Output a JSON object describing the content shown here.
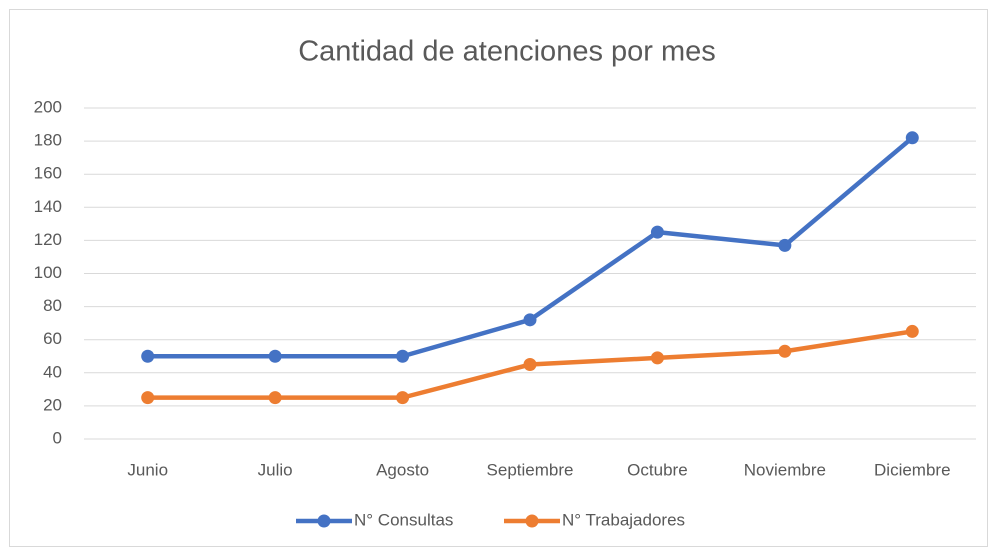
{
  "chart_data": {
    "type": "line",
    "title": "Cantidad de atenciones por mes",
    "categories": [
      "Junio",
      "Julio",
      "Agosto",
      "Septiembre",
      "Octubre",
      "Noviembre",
      "Diciembre"
    ],
    "series": [
      {
        "name": "N° Consultas",
        "color": "#4472c4",
        "values": [
          50,
          50,
          50,
          72,
          125,
          117,
          182
        ]
      },
      {
        "name": "N° Trabajadores",
        "color": "#ed7d31",
        "values": [
          25,
          25,
          25,
          45,
          49,
          53,
          65
        ]
      }
    ],
    "ylim": [
      0,
      200
    ],
    "yticks": [
      0,
      20,
      40,
      60,
      80,
      100,
      120,
      140,
      160,
      180,
      200
    ],
    "grid": true,
    "legend": "bottom"
  }
}
